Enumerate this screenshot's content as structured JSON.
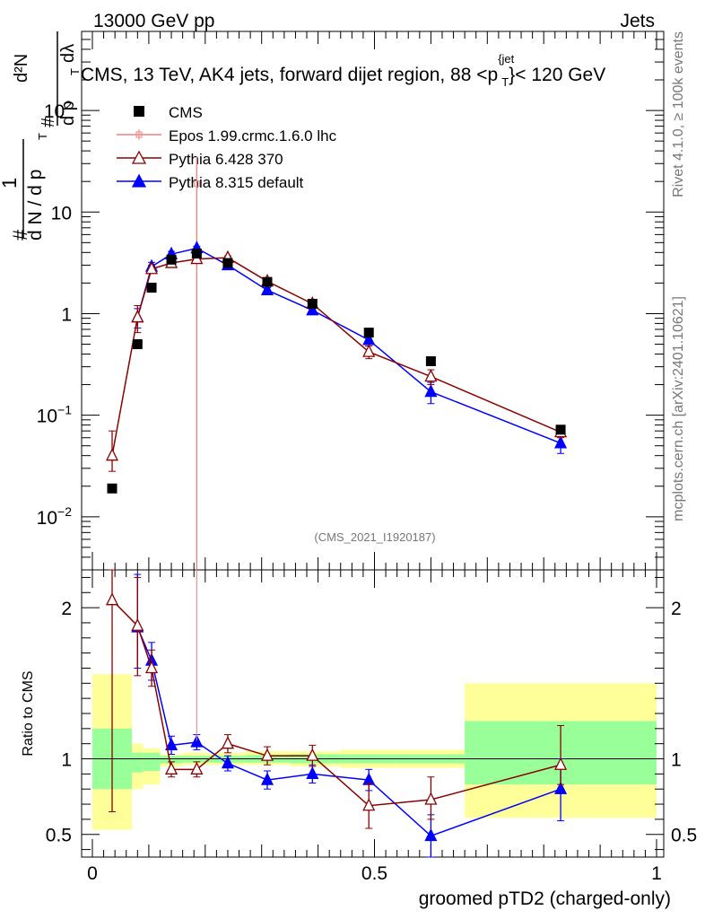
{
  "header": {
    "left": "13000 GeV pp",
    "right": "Jets"
  },
  "chart_data": [
    {
      "type": "line",
      "panel": "main",
      "title": "CMS, 13 TeV, AK4 jets, forward dijet region, 88 <p_T^{jet}< 120 GeV",
      "title_parts": {
        "prefix": "CMS, 13 TeV, AK4 jets, forward dijet region, 88 <p",
        "sub": "T",
        "sup": "{jet",
        "suffix": "}< 120 GeV"
      },
      "ylabel": "1/(dN/dp_T) d²N/(dp_T dλ)",
      "ylabel_parts": {
        "one": "1",
        "hash": "#",
        "dN": "d N / d p",
        "sub": "T",
        "d2N": "d²N",
        "dp": "d p",
        "sub2": "T",
        "dl": "dλ"
      },
      "yscale": "log",
      "ylim": [
        0.003,
        600
      ],
      "yticks": [
        {
          "v": 0.01,
          "label": "10",
          "exp": "−2"
        },
        {
          "v": 0.1,
          "label": "10",
          "exp": "−1"
        },
        {
          "v": 1,
          "label": "1",
          "exp": ""
        },
        {
          "v": 10,
          "label": "10",
          "exp": ""
        },
        {
          "v": 100,
          "label": "10",
          "exp": "2"
        }
      ],
      "xlim": [
        0,
        1
      ],
      "analysis_label": "(CMS_2021_I1920187)",
      "side_label_top": "Rivet 4.1.0, ≥ 100k events",
      "side_label_bottom": "mcplots.cern.ch [arXiv:2401.10621]",
      "legend": [
        {
          "name": "CMS",
          "marker": "square",
          "color": "#000000"
        },
        {
          "name": "Epos 1.99.crmc.1.6.0 lhc",
          "marker": "cross",
          "color": "#f08080"
        },
        {
          "name": "Pythia 6.428 370",
          "marker": "triangle-open",
          "color": "#8b0000"
        },
        {
          "name": "Pythia 8.315 default",
          "marker": "triangle-filled",
          "color": "#0000ff"
        }
      ],
      "series": [
        {
          "name": "CMS",
          "x": [
            0.035,
            0.08,
            0.105,
            0.14,
            0.185,
            0.24,
            0.31,
            0.39,
            0.49,
            0.6,
            0.83
          ],
          "values": [
            0.019,
            0.5,
            1.8,
            3.4,
            3.9,
            3.15,
            2.05,
            1.25,
            0.65,
            0.34,
            0.072
          ]
        },
        {
          "name": "Epos 1.99.crmc.1.6.0 lhc",
          "x": [
            0.185
          ],
          "values": [
            19
          ],
          "err_low": [
            0.003
          ],
          "err_high": [
            600
          ]
        },
        {
          "name": "Pythia 6.428 370",
          "x": [
            0.035,
            0.08,
            0.105,
            0.14,
            0.185,
            0.24,
            0.31,
            0.39,
            0.49,
            0.6,
            0.83
          ],
          "values": [
            0.04,
            0.92,
            2.75,
            3.15,
            3.45,
            3.55,
            2.08,
            1.25,
            0.42,
            0.24,
            0.068
          ],
          "err_low": [
            0.028,
            0.65,
            2.5,
            2.95,
            3.3,
            3.4,
            2.0,
            1.18,
            0.36,
            0.2,
            0.06
          ],
          "err_high": [
            0.07,
            1.2,
            3.0,
            3.35,
            3.6,
            3.7,
            2.16,
            1.32,
            0.48,
            0.28,
            0.078
          ]
        },
        {
          "name": "Pythia 8.315 default",
          "x": [
            0.035,
            0.08,
            0.105,
            0.14,
            0.185,
            0.24,
            0.31,
            0.39,
            0.49,
            0.6,
            0.83
          ],
          "values": [
            null,
            0.92,
            2.9,
            3.85,
            4.4,
            3.0,
            1.7,
            1.08,
            0.55,
            0.17,
            0.053
          ],
          "err_low": [
            null,
            0.72,
            2.6,
            3.6,
            4.2,
            2.85,
            1.6,
            1.0,
            0.48,
            0.13,
            0.042
          ],
          "err_high": [
            null,
            1.12,
            3.2,
            4.1,
            4.6,
            3.15,
            1.8,
            1.16,
            0.62,
            0.21,
            0.064
          ]
        }
      ]
    },
    {
      "type": "line",
      "panel": "ratio",
      "ylabel": "Ratio to CMS",
      "xlabel": "groomed pTD2 (charged-only)",
      "ylim": [
        0.35,
        2.25
      ],
      "yticks": [
        {
          "v": 0.5,
          "label": "0.5"
        },
        {
          "v": 1,
          "label": "1"
        },
        {
          "v": 2,
          "label": "2"
        }
      ],
      "xlim": [
        0,
        1
      ],
      "xticks": [
        {
          "v": 0,
          "label": "0"
        },
        {
          "v": 0.5,
          "label": "0.5"
        },
        {
          "v": 1,
          "label": "1"
        }
      ],
      "bins": [
        0,
        0.07,
        0.09,
        0.12,
        0.16,
        0.21,
        0.27,
        0.35,
        0.44,
        0.54,
        0.66,
        1.0
      ],
      "band_yellow_low": [
        0.53,
        0.8,
        0.83,
        0.95,
        0.96,
        0.96,
        0.96,
        0.95,
        0.94,
        0.94,
        0.61
      ],
      "band_yellow_high": [
        1.56,
        1.1,
        1.07,
        1.03,
        1.04,
        1.04,
        1.05,
        1.05,
        1.06,
        1.06,
        1.5
      ],
      "band_green_low": [
        0.8,
        0.91,
        0.92,
        0.97,
        0.975,
        0.975,
        0.975,
        0.97,
        0.97,
        0.97,
        0.83
      ],
      "band_green_high": [
        1.2,
        1.04,
        1.04,
        1.02,
        1.02,
        1.02,
        1.025,
        1.03,
        1.03,
        1.03,
        1.25
      ],
      "series": [
        {
          "name": "Pythia 6.428 370",
          "x": [
            0.035,
            0.08,
            0.105,
            0.14,
            0.185,
            0.24,
            0.31,
            0.39,
            0.49,
            0.6,
            0.83
          ],
          "values": [
            2.05,
            1.88,
            1.6,
            0.93,
            0.93,
            1.1,
            1.02,
            1.02,
            0.69,
            0.73,
            0.96
          ],
          "err_low": [
            0.65,
            1.55,
            1.48,
            0.88,
            0.88,
            1.04,
            0.96,
            0.95,
            0.54,
            0.6,
            0.83
          ],
          "err_high": [
            2.25,
            2.2,
            1.72,
            0.98,
            0.98,
            1.16,
            1.08,
            1.09,
            0.84,
            0.88,
            1.22
          ]
        },
        {
          "name": "Pythia 8.315 default",
          "x": [
            0.08,
            0.105,
            0.14,
            0.185,
            0.24,
            0.31,
            0.39,
            0.49,
            0.6,
            0.83
          ],
          "values": [
            1.87,
            1.65,
            1.09,
            1.11,
            0.97,
            0.86,
            0.9,
            0.86,
            0.49,
            0.8
          ],
          "err_low": [
            1.6,
            1.52,
            1.03,
            1.06,
            0.92,
            0.8,
            0.84,
            0.79,
            0.35,
            0.59
          ],
          "err_high": [
            2.22,
            1.77,
            1.15,
            1.16,
            1.02,
            0.92,
            0.96,
            0.93,
            0.63,
            1.0
          ]
        }
      ]
    }
  ]
}
